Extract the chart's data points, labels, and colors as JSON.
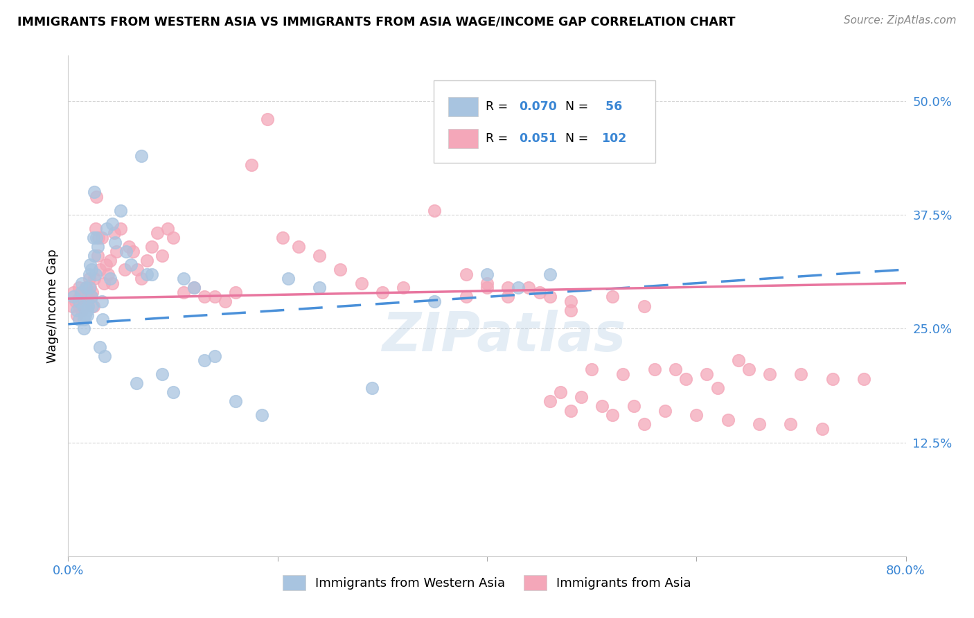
{
  "title": "IMMIGRANTS FROM WESTERN ASIA VS IMMIGRANTS FROM ASIA WAGE/INCOME GAP CORRELATION CHART",
  "source": "Source: ZipAtlas.com",
  "ylabel": "Wage/Income Gap",
  "x_min": 0.0,
  "x_max": 0.8,
  "y_min": 0.0,
  "y_max": 0.55,
  "x_tick_positions": [
    0.0,
    0.2,
    0.4,
    0.6,
    0.8
  ],
  "x_tick_labels": [
    "0.0%",
    "",
    "",
    "",
    "80.0%"
  ],
  "y_ticks": [
    0.125,
    0.25,
    0.375,
    0.5
  ],
  "y_tick_labels": [
    "12.5%",
    "25.0%",
    "37.5%",
    "50.0%"
  ],
  "watermark": "ZIPatlas",
  "color_blue": "#a8c4e0",
  "color_pink": "#f4a7b9",
  "line_color_blue": "#4a90d9",
  "line_color_pink": "#e8769f",
  "series1_label": "Immigrants from Western Asia",
  "series2_label": "Immigrants from Asia",
  "legend_color_text": "#3a86d4",
  "tick_color": "#3a86d4",
  "grid_color": "#cccccc",
  "blue_line_start_y": 0.255,
  "blue_line_end_y": 0.315,
  "pink_line_start_y": 0.283,
  "pink_line_end_y": 0.3,
  "series1_x": [
    0.005,
    0.008,
    0.01,
    0.01,
    0.012,
    0.013,
    0.014,
    0.015,
    0.015,
    0.016,
    0.017,
    0.018,
    0.018,
    0.019,
    0.02,
    0.02,
    0.021,
    0.022,
    0.022,
    0.023,
    0.024,
    0.025,
    0.025,
    0.026,
    0.027,
    0.028,
    0.03,
    0.032,
    0.033,
    0.035,
    0.037,
    0.04,
    0.042,
    0.045,
    0.05,
    0.055,
    0.06,
    0.065,
    0.07,
    0.075,
    0.08,
    0.09,
    0.1,
    0.11,
    0.12,
    0.13,
    0.14,
    0.16,
    0.185,
    0.21,
    0.24,
    0.29,
    0.35,
    0.4,
    0.43,
    0.46
  ],
  "series1_y": [
    0.285,
    0.27,
    0.28,
    0.26,
    0.29,
    0.3,
    0.275,
    0.26,
    0.25,
    0.265,
    0.295,
    0.27,
    0.265,
    0.275,
    0.31,
    0.295,
    0.32,
    0.315,
    0.285,
    0.275,
    0.35,
    0.4,
    0.33,
    0.31,
    0.35,
    0.34,
    0.23,
    0.28,
    0.26,
    0.22,
    0.36,
    0.305,
    0.365,
    0.345,
    0.38,
    0.335,
    0.32,
    0.19,
    0.44,
    0.31,
    0.31,
    0.2,
    0.18,
    0.305,
    0.295,
    0.215,
    0.22,
    0.17,
    0.155,
    0.305,
    0.295,
    0.185,
    0.28,
    0.31,
    0.295,
    0.31
  ],
  "series2_x": [
    0.004,
    0.005,
    0.007,
    0.008,
    0.01,
    0.01,
    0.011,
    0.012,
    0.013,
    0.014,
    0.015,
    0.016,
    0.017,
    0.018,
    0.019,
    0.02,
    0.021,
    0.022,
    0.023,
    0.024,
    0.025,
    0.026,
    0.027,
    0.028,
    0.029,
    0.03,
    0.032,
    0.034,
    0.036,
    0.038,
    0.04,
    0.042,
    0.044,
    0.046,
    0.05,
    0.054,
    0.058,
    0.062,
    0.066,
    0.07,
    0.075,
    0.08,
    0.085,
    0.09,
    0.095,
    0.1,
    0.11,
    0.12,
    0.13,
    0.14,
    0.15,
    0.16,
    0.175,
    0.19,
    0.205,
    0.22,
    0.24,
    0.26,
    0.28,
    0.3,
    0.32,
    0.35,
    0.38,
    0.4,
    0.42,
    0.45,
    0.48,
    0.52,
    0.55,
    0.58,
    0.61,
    0.64,
    0.67,
    0.7,
    0.73,
    0.76,
    0.5,
    0.53,
    0.56,
    0.59,
    0.62,
    0.65,
    0.47,
    0.49,
    0.51,
    0.54,
    0.57,
    0.6,
    0.63,
    0.66,
    0.69,
    0.72,
    0.46,
    0.48,
    0.52,
    0.55,
    0.38,
    0.4,
    0.42,
    0.44,
    0.46,
    0.48
  ],
  "series2_y": [
    0.275,
    0.29,
    0.28,
    0.265,
    0.295,
    0.275,
    0.285,
    0.28,
    0.27,
    0.28,
    0.275,
    0.285,
    0.295,
    0.28,
    0.29,
    0.305,
    0.295,
    0.285,
    0.29,
    0.275,
    0.305,
    0.36,
    0.395,
    0.33,
    0.35,
    0.315,
    0.35,
    0.3,
    0.32,
    0.31,
    0.325,
    0.3,
    0.355,
    0.335,
    0.36,
    0.315,
    0.34,
    0.335,
    0.315,
    0.305,
    0.325,
    0.34,
    0.355,
    0.33,
    0.36,
    0.35,
    0.29,
    0.295,
    0.285,
    0.285,
    0.28,
    0.29,
    0.43,
    0.48,
    0.35,
    0.34,
    0.33,
    0.315,
    0.3,
    0.29,
    0.295,
    0.38,
    0.31,
    0.3,
    0.295,
    0.29,
    0.28,
    0.285,
    0.275,
    0.205,
    0.2,
    0.215,
    0.2,
    0.2,
    0.195,
    0.195,
    0.205,
    0.2,
    0.205,
    0.195,
    0.185,
    0.205,
    0.18,
    0.175,
    0.165,
    0.165,
    0.16,
    0.155,
    0.15,
    0.145,
    0.145,
    0.14,
    0.17,
    0.16,
    0.155,
    0.145,
    0.285,
    0.295,
    0.285,
    0.295,
    0.285,
    0.27
  ]
}
